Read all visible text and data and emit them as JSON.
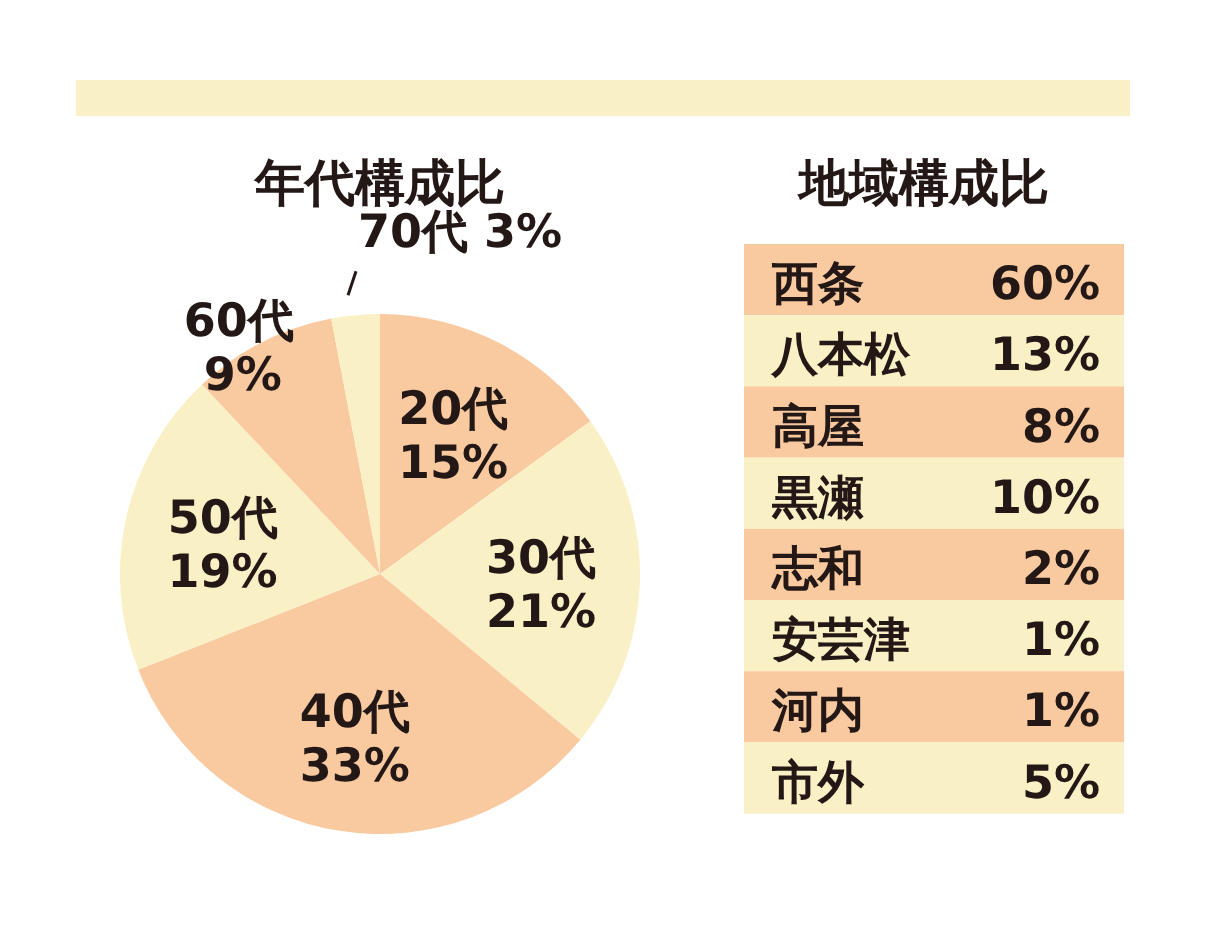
{
  "chart_data": [
    {
      "type": "pie",
      "title": "年代構成比",
      "categories": [
        "20代",
        "30代",
        "40代",
        "50代",
        "60代",
        "70代"
      ],
      "values": [
        15,
        21,
        33,
        19,
        9,
        3
      ],
      "colors": [
        "#f9c9a0",
        "#faf0c6",
        "#f9c9a0",
        "#faf0c6",
        "#f9c9a0",
        "#faf0c6"
      ],
      "value_labels": [
        "15%",
        "21%",
        "33%",
        "19%",
        "9%",
        "3%"
      ]
    },
    {
      "type": "other",
      "title": "地域構成比",
      "categories": [
        "西条",
        "八本松",
        "高屋",
        "黒瀬",
        "志和",
        "安芸津",
        "河内",
        "市外"
      ],
      "values": [
        60,
        13,
        8,
        10,
        2,
        1,
        1,
        5
      ],
      "colors": [
        "#f9c9a0",
        "#faf0c6",
        "#f9c9a0",
        "#faf0c6",
        "#f9c9a0",
        "#faf0c6",
        "#f9c9a0",
        "#faf0c6"
      ],
      "value_labels": [
        "60%",
        "13%",
        "8%",
        "10%",
        "2%",
        "1%",
        "1%",
        "5%"
      ]
    }
  ]
}
